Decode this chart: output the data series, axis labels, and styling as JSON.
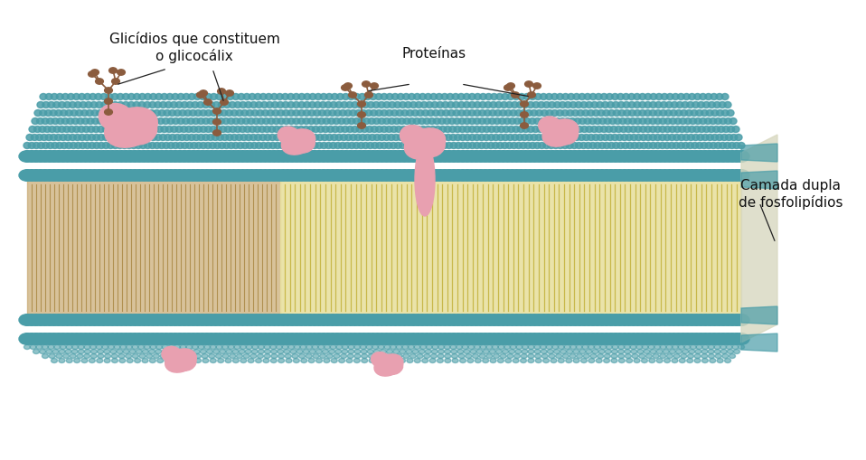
{
  "bg_color": "#ffffff",
  "title": "",
  "labels": {
    "glicidios": "Glicídios que constituem\no glicocálix",
    "proteinas": "Proteínas",
    "camada": "Camada dupla\nde fosfolipídios"
  },
  "label_positions": {
    "glicidios": [
      0.22,
      0.82
    ],
    "proteinas": [
      0.48,
      0.78
    ],
    "camada": [
      0.86,
      0.52
    ]
  },
  "colors": {
    "teal_bead": "#4a9da8",
    "lipid_tail": "#c8b84a",
    "lipid_inner": "#e8e0a0",
    "protein_pink": "#e8a0b0",
    "glycan_brown": "#8b5c3e",
    "membrane_teal": "#5aabb5",
    "membrane_dark": "#b08060",
    "line_color": "#222222",
    "text_color": "#111111"
  },
  "figsize": [
    9.58,
    5.1
  ],
  "dpi": 100
}
